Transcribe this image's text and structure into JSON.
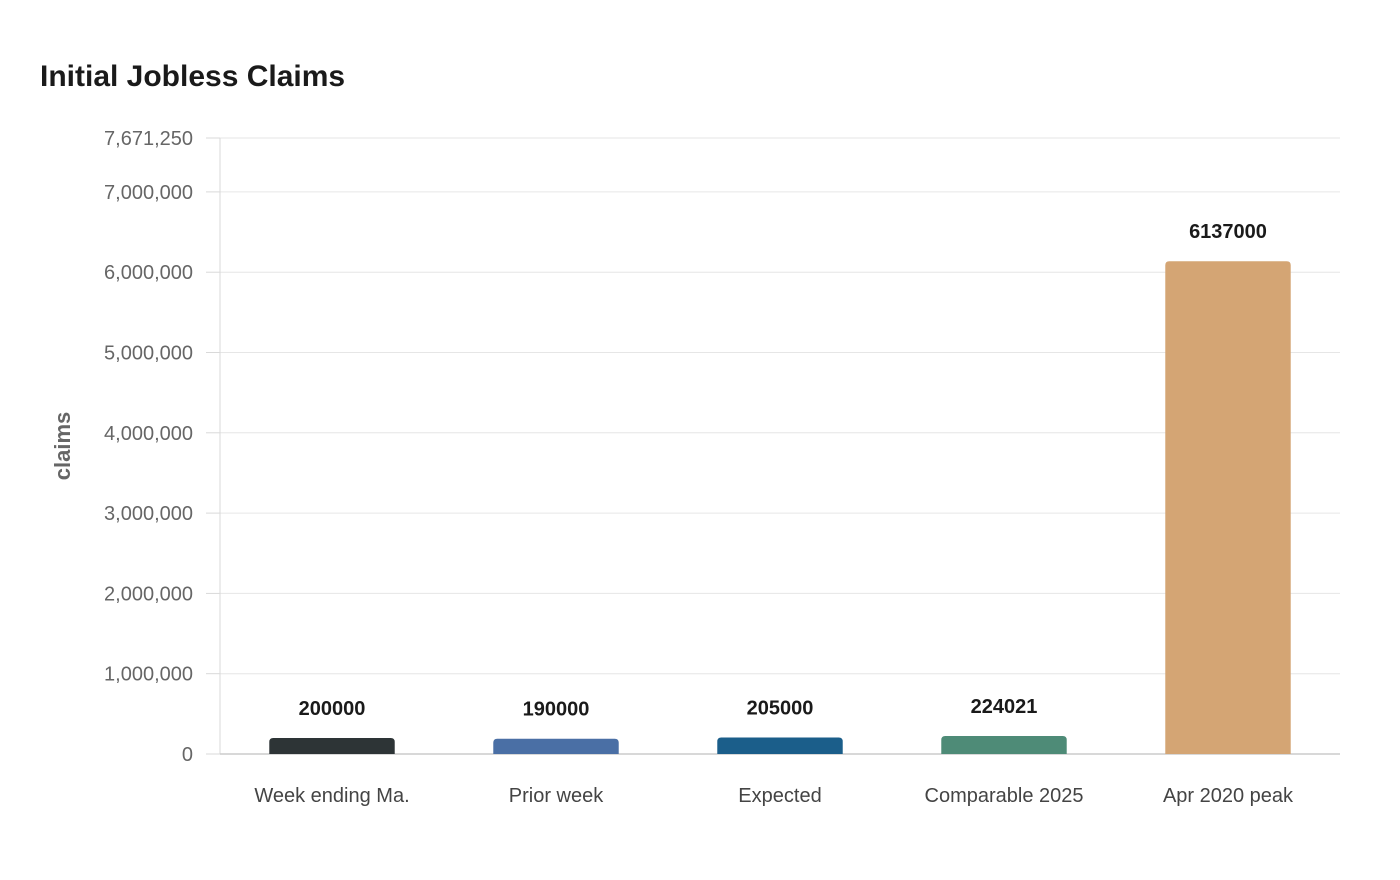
{
  "chart_data": {
    "type": "bar",
    "title": "Initial Jobless Claims",
    "xlabel": "",
    "ylabel": "claims",
    "categories": [
      "Week ending Ma.",
      "Prior week",
      "Expected",
      "Comparable 2025",
      "Apr 2020 peak"
    ],
    "values": [
      200000,
      190000,
      205000,
      224021,
      6137000
    ],
    "value_labels": [
      "200000",
      "190000",
      "205000",
      "224021",
      "6137000"
    ],
    "colors": [
      "#2d3436",
      "#4a6fa5",
      "#1b5e8a",
      "#4e8b77",
      "#d4a574"
    ],
    "ylim": [
      0,
      7671250
    ],
    "yticks": [
      0,
      1000000,
      2000000,
      3000000,
      4000000,
      5000000,
      6000000,
      7000000,
      7671250
    ],
    "ytick_labels": [
      "0",
      "1,000,000",
      "2,000,000",
      "3,000,000",
      "4,000,000",
      "5,000,000",
      "6,000,000",
      "7,000,000",
      "7,671,250"
    ],
    "grid": true,
    "legend": "none"
  }
}
